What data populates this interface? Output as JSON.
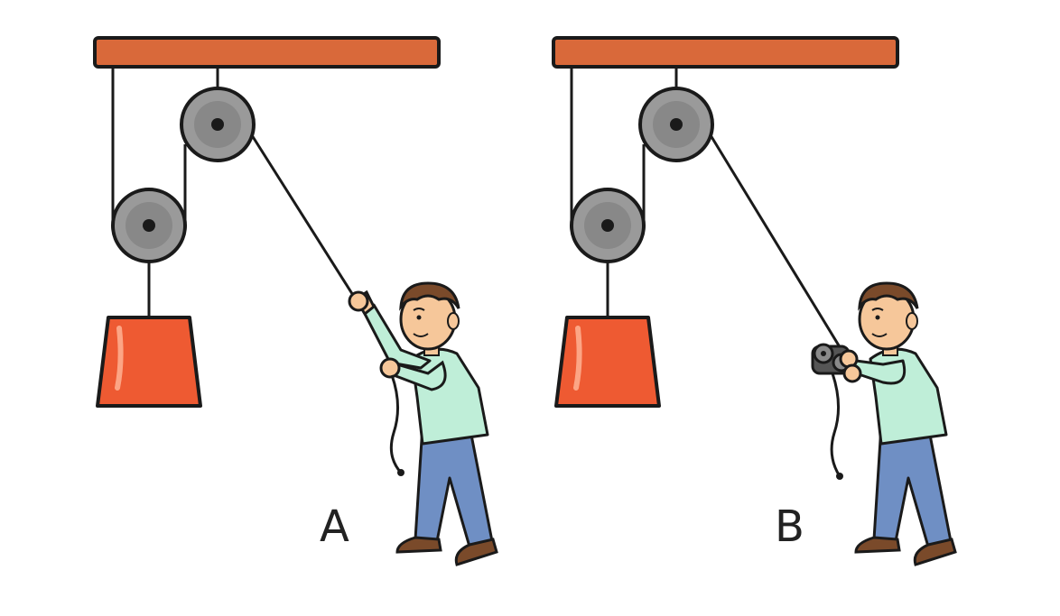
{
  "panels": [
    {
      "id": "A",
      "label": "A",
      "tool": "hands"
    },
    {
      "id": "B",
      "label": "B",
      "tool": "winch-reel"
    }
  ],
  "colors": {
    "beam": "#d9693a",
    "weight": "#ee5a32",
    "pulley": "#9a9a9a",
    "rope": "#1a1a1a",
    "shirt": "#bfeed8",
    "pants": "#6f8fc4",
    "skin": "#f6c79a",
    "hair": "#7a4a2a",
    "shoes": "#7a4a2a"
  }
}
